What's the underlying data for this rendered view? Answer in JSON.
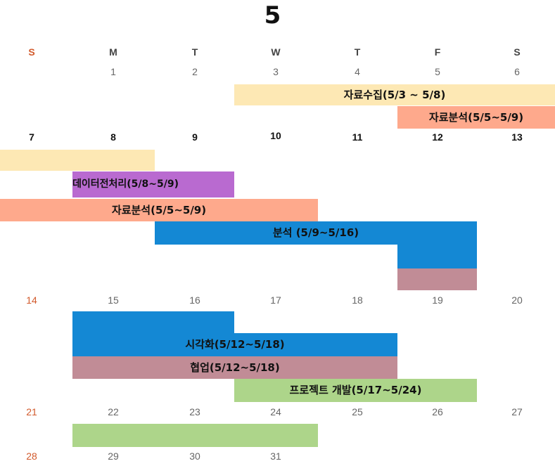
{
  "calendar": {
    "month": "5",
    "weekdays": [
      {
        "label": "S",
        "type": "sunday"
      },
      {
        "label": "M",
        "type": "weekday"
      },
      {
        "label": "T",
        "type": "weekday"
      },
      {
        "label": "W",
        "type": "weekday"
      },
      {
        "label": "T",
        "type": "weekday"
      },
      {
        "label": "F",
        "type": "weekday"
      },
      {
        "label": "S",
        "type": "weekday"
      }
    ],
    "weeks": [
      {
        "days": [
          {
            "n": ""
          },
          {
            "n": "1"
          },
          {
            "n": "2"
          },
          {
            "n": "3"
          },
          {
            "n": "4"
          },
          {
            "n": "5"
          },
          {
            "n": "6"
          }
        ]
      },
      {
        "bold": true,
        "days": [
          {
            "n": "7"
          },
          {
            "n": "8"
          },
          {
            "n": "9"
          },
          {
            "n": "10"
          },
          {
            "n": "11"
          },
          {
            "n": "12"
          },
          {
            "n": "13"
          }
        ]
      },
      {
        "days": [
          {
            "n": "14"
          },
          {
            "n": "15"
          },
          {
            "n": "16"
          },
          {
            "n": "17"
          },
          {
            "n": "18"
          },
          {
            "n": "19"
          },
          {
            "n": "20"
          }
        ]
      },
      {
        "days": [
          {
            "n": "21"
          },
          {
            "n": "22"
          },
          {
            "n": "23"
          },
          {
            "n": "24"
          },
          {
            "n": "25"
          },
          {
            "n": "26"
          },
          {
            "n": "27"
          }
        ]
      },
      {
        "days": [
          {
            "n": "28"
          },
          {
            "n": "29"
          },
          {
            "n": "30"
          },
          {
            "n": "31"
          }
        ]
      }
    ]
  },
  "colors": {
    "collect": "#fde8b4",
    "analysis_orange": "#fea98c",
    "preprocess": "#b96ad0",
    "analysis_blue": "#1488d4",
    "collab": "#c18c96",
    "dev": "#add58a",
    "sunday": "#d25a2c"
  },
  "events": {
    "collect_w1": {
      "label": "자료수집(5/3 ~ 5/8)",
      "color": "#fde8b4"
    },
    "collect_w2": {
      "label": "",
      "color": "#fde8b4"
    },
    "analysis_w1": {
      "label": "자료분석(5/5~5/9)",
      "color": "#fea98c"
    },
    "analysis_w2": {
      "label": "자료분석(5/5~5/9)",
      "color": "#fea98c"
    },
    "preprocess": {
      "label": "데이터전처리(5/8~5/9)",
      "color": "#b96ad0"
    },
    "bunseok_w2": {
      "label": "분석 (5/9~5/16)",
      "color": "#1488d4"
    },
    "bunseok_w2b": {
      "label": "",
      "color": "#1488d4"
    },
    "bunseok_w3": {
      "label": "",
      "color": "#1488d4"
    },
    "collab_w2": {
      "label": "",
      "color": "#c18c96"
    },
    "visual": {
      "label": "시각화(5/12~5/18)",
      "color": "#1488d4"
    },
    "collab_w3": {
      "label": "협업(5/12~5/18)",
      "color": "#c18c96"
    },
    "dev_w3": {
      "label": "프로젝트 개발(5/17~5/24)",
      "color": "#add58a"
    },
    "dev_w4": {
      "label": "",
      "color": "#add58a"
    }
  }
}
